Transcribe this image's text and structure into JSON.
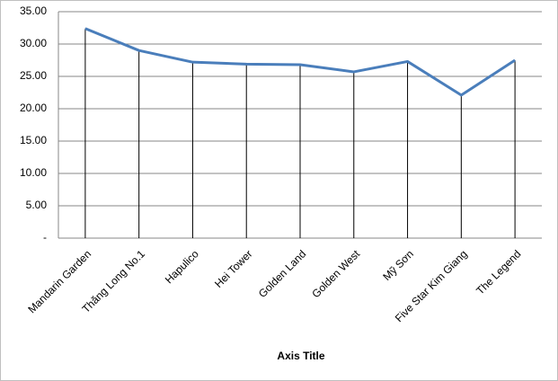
{
  "chart_data": {
    "type": "line",
    "x_axis_title": "Axis Title",
    "categories": [
      "Mandarin Garden",
      "Thăng Long No.1",
      "Hapulico",
      "Hei Tower",
      "Golden Land",
      "Golden West",
      "Mỹ Sơn",
      "Five Star Kim Giang",
      "The Legend"
    ],
    "values": [
      32.4,
      29.0,
      27.2,
      26.9,
      26.8,
      25.7,
      27.3,
      22.1,
      27.5
    ],
    "color": "#4a7ebb",
    "drop_lines": true,
    "ylim": [
      0,
      35
    ],
    "yticks": [
      {
        "value": 0,
        "label": "-"
      },
      {
        "value": 5,
        "label": "5.00"
      },
      {
        "value": 10,
        "label": "10.00"
      },
      {
        "value": 15,
        "label": "15.00"
      },
      {
        "value": 20,
        "label": "20.00"
      },
      {
        "value": 25,
        "label": "25.00"
      },
      {
        "value": 30,
        "label": "30.00"
      },
      {
        "value": 35,
        "label": "35.00"
      }
    ],
    "grid": true
  }
}
